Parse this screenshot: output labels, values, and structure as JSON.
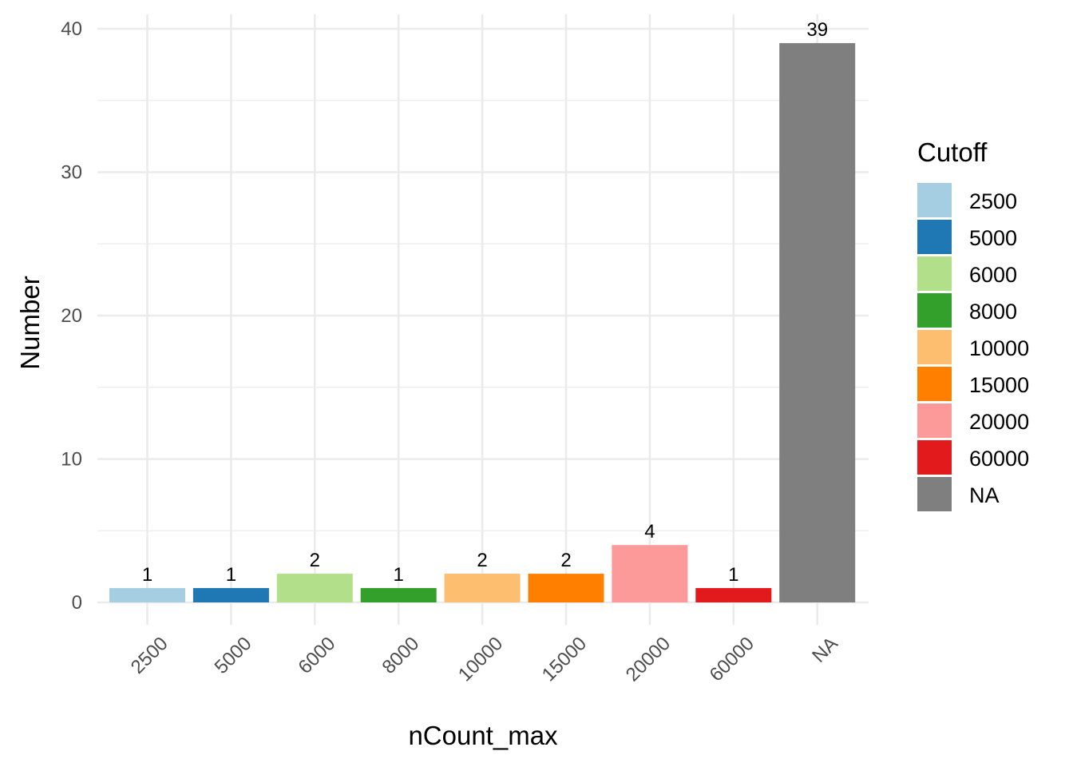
{
  "chart_data": {
    "type": "bar",
    "categories": [
      "2500",
      "5000",
      "6000",
      "8000",
      "10000",
      "15000",
      "20000",
      "60000",
      "NA"
    ],
    "values": [
      1,
      1,
      2,
      1,
      2,
      2,
      4,
      1,
      39
    ],
    "data_labels": [
      "1",
      "1",
      "2",
      "1",
      "2",
      "2",
      "4",
      "1",
      "39"
    ],
    "colors": [
      "#A6CEE3",
      "#1F78B4",
      "#B2DF8A",
      "#33A02C",
      "#FDBF6F",
      "#FF7F00",
      "#FB9A99",
      "#E31A1C",
      "#7F7F7F"
    ],
    "xlabel": "nCount_max",
    "ylabel": "Number",
    "ylim": [
      0,
      40
    ],
    "y_ticks": [
      0,
      10,
      20,
      30,
      40
    ],
    "x_tick_rotation_deg": -45,
    "grid": true,
    "legend": {
      "title": "Cutoff",
      "placement": "right",
      "entries": [
        "2500",
        "5000",
        "6000",
        "8000",
        "10000",
        "15000",
        "20000",
        "60000",
        "NA"
      ]
    }
  }
}
